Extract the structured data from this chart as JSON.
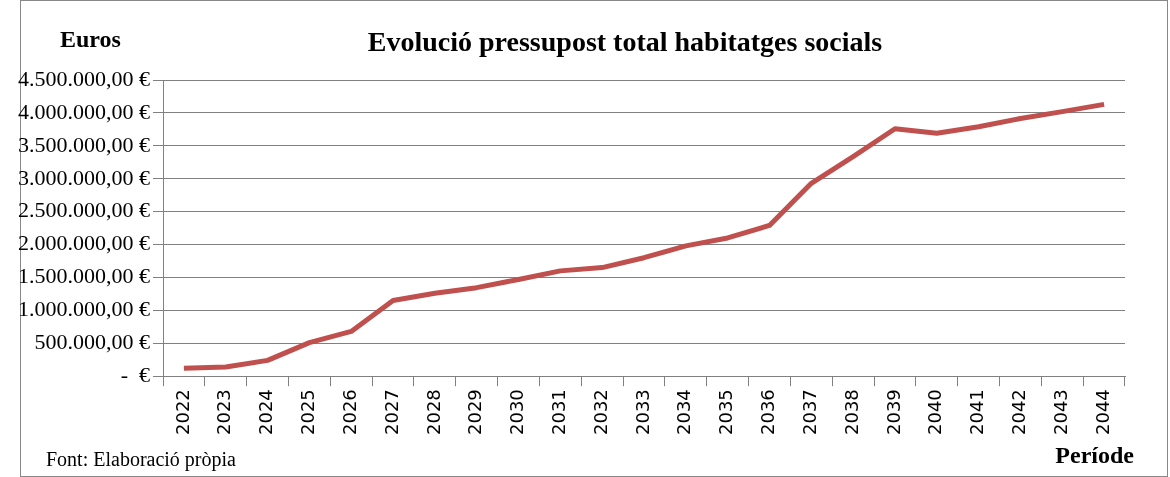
{
  "chart_data": {
    "type": "line",
    "title": "Evolució pressupost total habitatges socials",
    "ylabel": "Euros",
    "xlabel": "Període",
    "annotations": [
      "Font: Elaboració pròpia"
    ],
    "categories": [
      "2022",
      "2023",
      "2024",
      "2025",
      "2026",
      "2027",
      "2028",
      "2029",
      "2030",
      "2031",
      "2032",
      "2033",
      "2034",
      "2035",
      "2036",
      "2037",
      "2038",
      "2039",
      "2040",
      "2041",
      "2042",
      "2043",
      "2044"
    ],
    "series": [
      {
        "color": "#c0504d",
        "values": [
          120000,
          140000,
          240000,
          510000,
          680000,
          1150000,
          1260000,
          1345000,
          1470000,
          1600000,
          1650000,
          1800000,
          1980000,
          2100000,
          2290000,
          2930000,
          3335000,
          3760000,
          3690000,
          3790000,
          3915000,
          4020000,
          4130000
        ]
      }
    ],
    "ylim": [
      0,
      4500000
    ],
    "yticks": [
      {
        "value": 0,
        "label": "-  €"
      },
      {
        "value": 500000,
        "label": "500.000,00 €"
      },
      {
        "value": 1000000,
        "label": "1.000.000,00 €"
      },
      {
        "value": 1500000,
        "label": "1.500.000,00 €"
      },
      {
        "value": 2000000,
        "label": "2.000.000,00 €"
      },
      {
        "value": 2500000,
        "label": "2.500.000,00 €"
      },
      {
        "value": 3000000,
        "label": "3.000.000,00 €"
      },
      {
        "value": 3500000,
        "label": "3.500.000,00 €"
      },
      {
        "value": 4000000,
        "label": "4.000.000,00 €"
      },
      {
        "value": 4500000,
        "label": "4.500.000,00 €"
      }
    ],
    "grid": "y",
    "legend": false,
    "marker": "none",
    "line_style": "solid"
  }
}
